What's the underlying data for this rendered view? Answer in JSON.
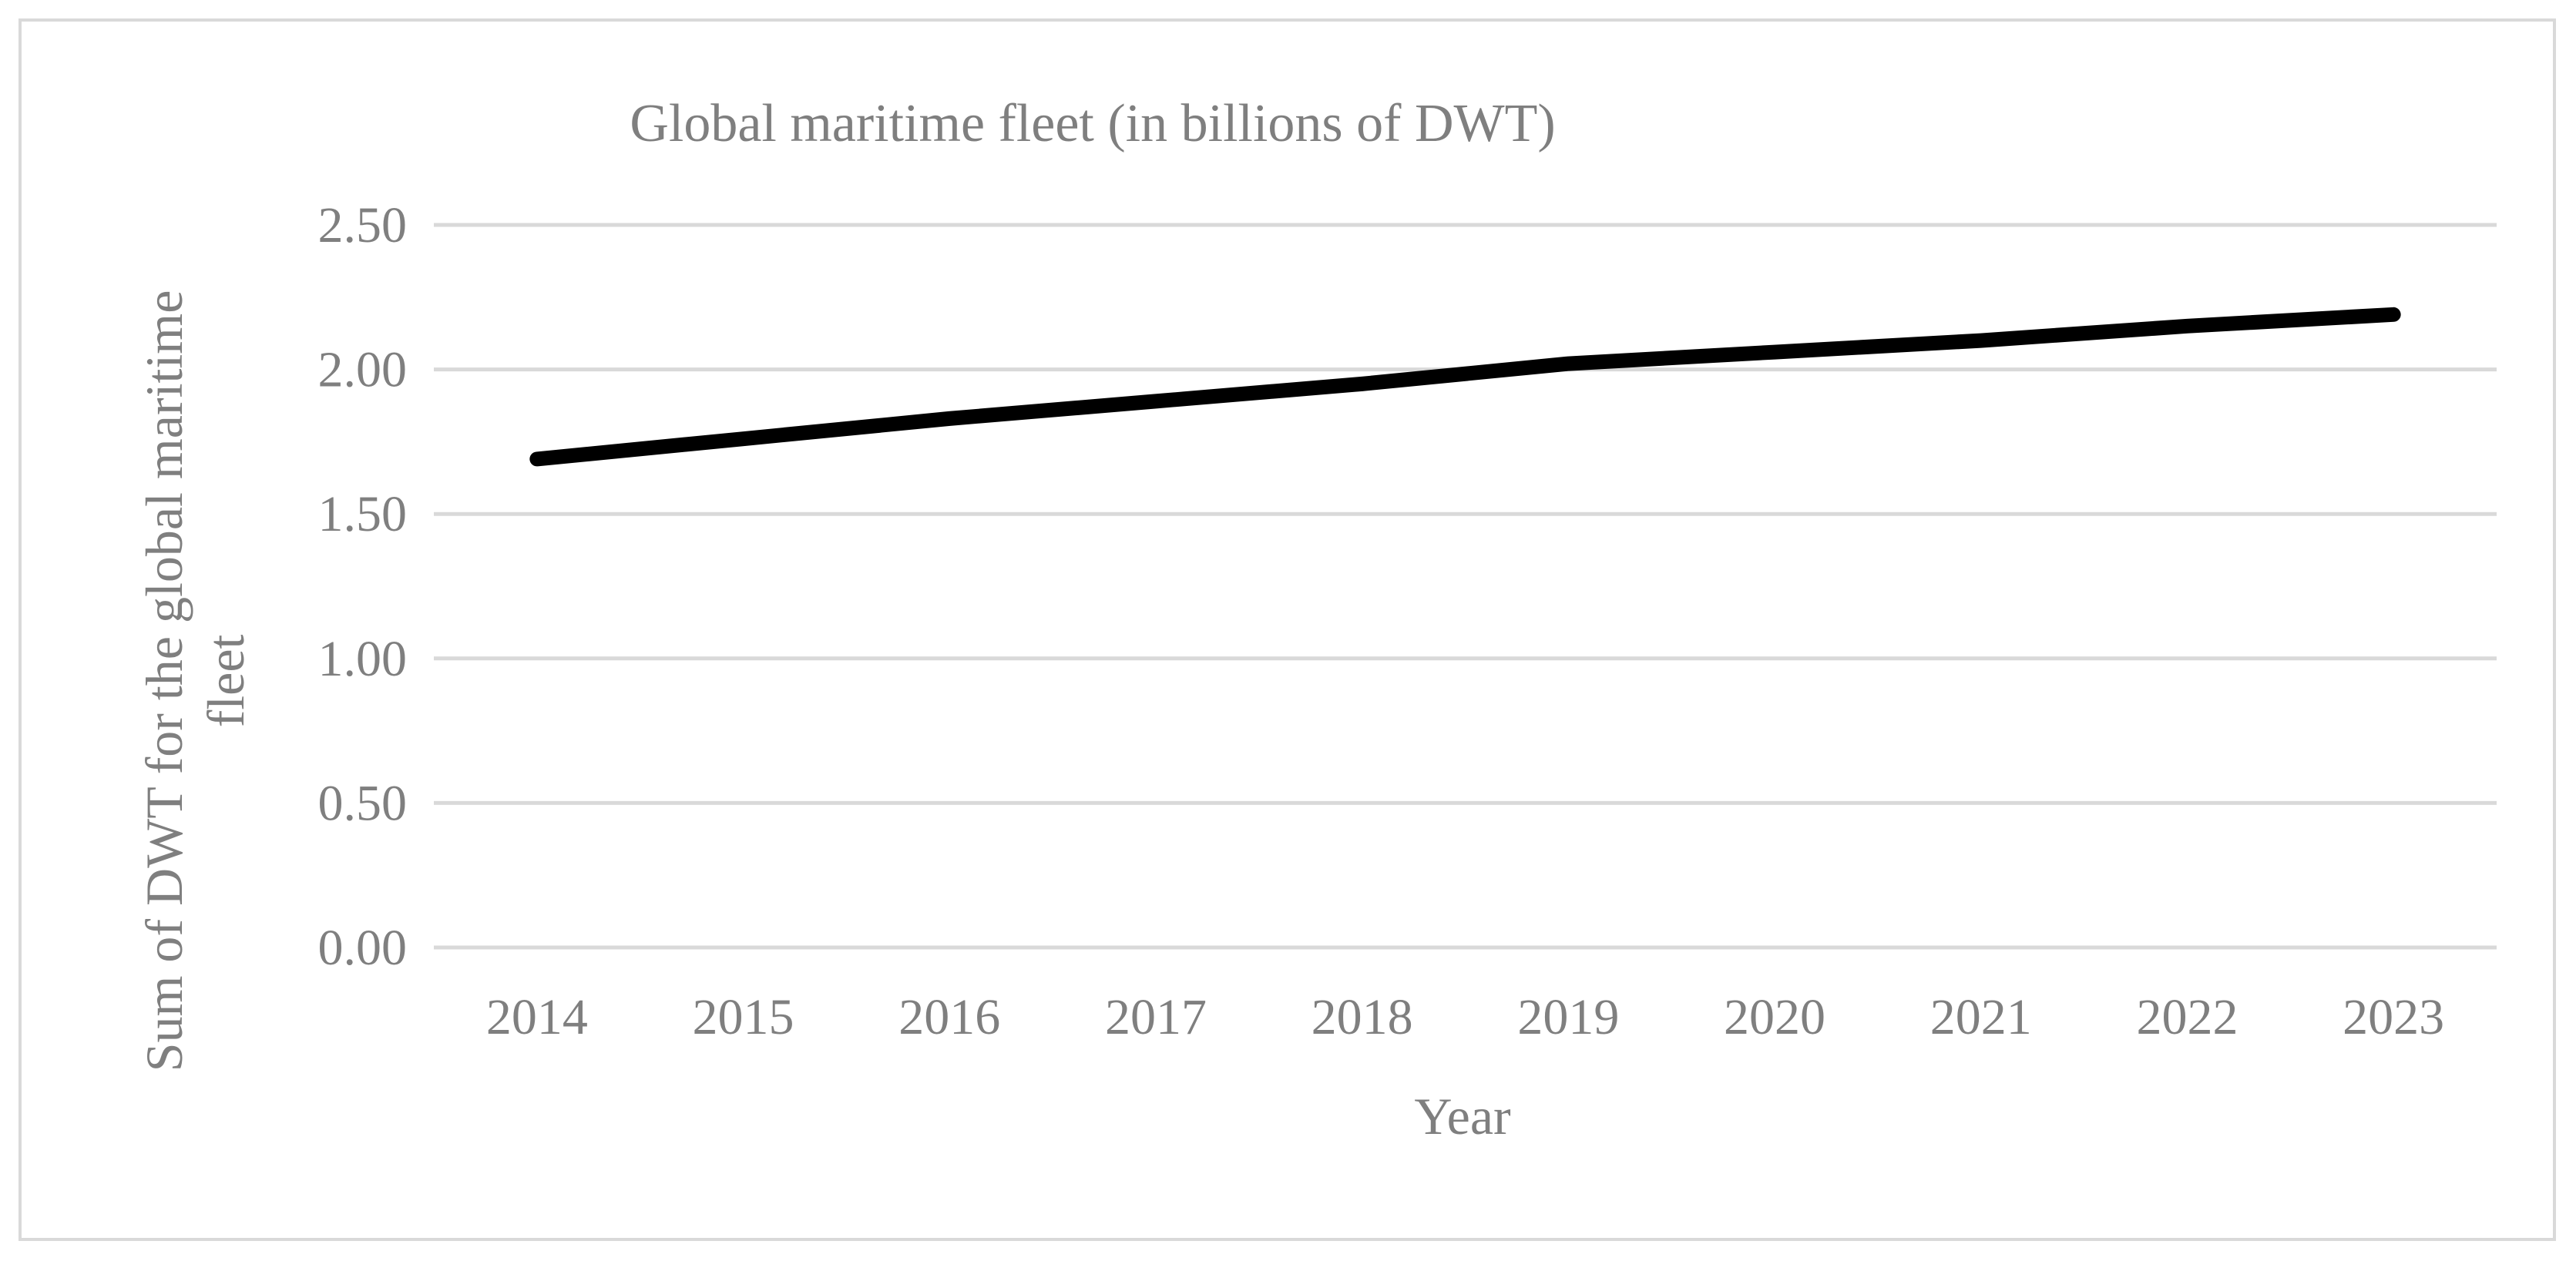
{
  "chart_data": {
    "type": "line",
    "title": "Global maritime fleet (in billions of DWT)",
    "xlabel": "Year",
    "ylabel": [
      "Sum of DWT for the global maritime",
      "fleet"
    ],
    "categories": [
      "2014",
      "2015",
      "2016",
      "2017",
      "2018",
      "2019",
      "2020",
      "2021",
      "2022",
      "2023"
    ],
    "series": [
      {
        "name": "Global maritime fleet",
        "values": [
          1.69,
          1.76,
          1.83,
          1.89,
          1.95,
          2.02,
          2.06,
          2.1,
          2.15,
          2.19
        ]
      }
    ],
    "ylim": [
      0,
      2.5
    ],
    "yticks": [
      "0.00",
      "0.50",
      "1.00",
      "1.50",
      "2.00",
      "2.50"
    ],
    "grid": true,
    "colors": {
      "line": "#000000",
      "grid": "#d9d9d9",
      "text": "#7f7f7f",
      "border": "#d9d9d9"
    }
  }
}
